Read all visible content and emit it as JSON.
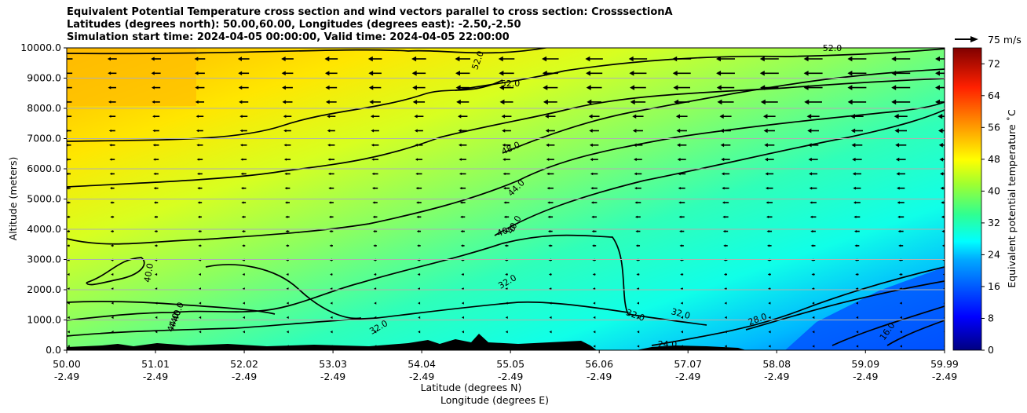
{
  "header": {
    "title_line1": "Equivalent Potential Temperature cross section and wind vectors parallel to cross section: CrosssectionA",
    "title_line2": "Latitudes (degrees north): 50.00,60.00, Longitudes (degrees east): -2.50,-2.50",
    "title_line3": "Simulation start time: 2024-04-05 00:00:00, Valid time: 2024-04-05 22:00:00"
  },
  "chart_data": {
    "type": "heatmap",
    "subtype": "filled-contour cross section with wind vectors",
    "xlabel": "Latitude (degrees N)",
    "xlabel2": "Longitude (degrees E)",
    "ylabel": "Altitude (meters)",
    "xlim": [
      50.0,
      59.99
    ],
    "ylim": [
      0,
      10000
    ],
    "x_ticks": [
      {
        "lat": "50.00",
        "lon": "-2.49"
      },
      {
        "lat": "51.01",
        "lon": "-2.49"
      },
      {
        "lat": "52.02",
        "lon": "-2.49"
      },
      {
        "lat": "53.03",
        "lon": "-2.49"
      },
      {
        "lat": "54.04",
        "lon": "-2.49"
      },
      {
        "lat": "55.05",
        "lon": "-2.49"
      },
      {
        "lat": "56.06",
        "lon": "-2.49"
      },
      {
        "lat": "57.07",
        "lon": "-2.49"
      },
      {
        "lat": "58.08",
        "lon": "-2.49"
      },
      {
        "lat": "59.09",
        "lon": "-2.49"
      },
      {
        "lat": "59.99",
        "lon": "-2.49"
      }
    ],
    "y_ticks": [
      "0.0",
      "1000.0",
      "2000.0",
      "3000.0",
      "4000.0",
      "5000.0",
      "6000.0",
      "7000.0",
      "8000.0",
      "9000.0",
      "10000.0"
    ],
    "colorbar": {
      "label": "Equivalent potential temperature ˚C",
      "ticks": [
        "0",
        "8",
        "16",
        "24",
        "32",
        "40",
        "48",
        "56",
        "64",
        "72"
      ],
      "range": [
        0,
        76
      ]
    },
    "contour_labels": [
      "52.0",
      "52.0",
      "52.0",
      "48.0",
      "44.0",
      "40.0",
      "40.0",
      "40.0",
      "40.0",
      "44.0",
      "44.0",
      "32.0",
      "32.0",
      "32.0",
      "32.0",
      "28.0",
      "24.0",
      "16.0"
    ],
    "wind_key": {
      "label": "75 m/s"
    },
    "wind_direction": "toward south (negative along-section)"
  }
}
